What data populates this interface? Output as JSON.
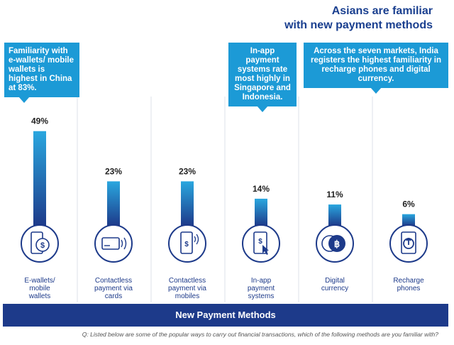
{
  "header": {
    "title_line1": "Asians are familiar",
    "title_line2": "with new payment methods"
  },
  "callouts": {
    "china": "Familiarity with e-wallets/ mobile wallets is highest in China at 83%.",
    "inapp": "In-app payment systems rate most highly in Singapore and Indonesia.",
    "india": "Across the seven markets, India registers the highest familiarity in recharge phones and digital currency."
  },
  "footer": {
    "label": "New Payment Methods",
    "footnote": "Q: Listed below are some of the popular ways to carry out financial transactions, which of the following methods are you familiar with?"
  },
  "colors": {
    "bar_top": "#2aa7df",
    "bar_bottom": "#1d3a8a",
    "icon": "#1d3a8a",
    "callout": "#1c9ad6"
  },
  "chart_data": {
    "type": "bar",
    "categories": [
      [
        "E-wallets/",
        "mobile",
        "wallets"
      ],
      [
        "Contactless",
        "payment via",
        "cards"
      ],
      [
        "Contactless",
        "payment via",
        "mobiles"
      ],
      [
        "In-app",
        "payment",
        "systems"
      ],
      [
        "Digital",
        "currency"
      ],
      [
        "Recharge",
        "phones"
      ]
    ],
    "values": [
      49,
      23,
      23,
      14,
      11,
      6
    ],
    "value_labels": [
      "49%",
      "23%",
      "23%",
      "14%",
      "11%",
      "6%"
    ],
    "icons": [
      "mobile-wallet-icon",
      "contactless-card-icon",
      "contactless-mobile-icon",
      "in-app-payment-icon",
      "digital-currency-icon",
      "recharge-phone-icon"
    ],
    "xlabel": "New Payment Methods",
    "ylim": [
      0,
      50
    ],
    "grid": false
  }
}
